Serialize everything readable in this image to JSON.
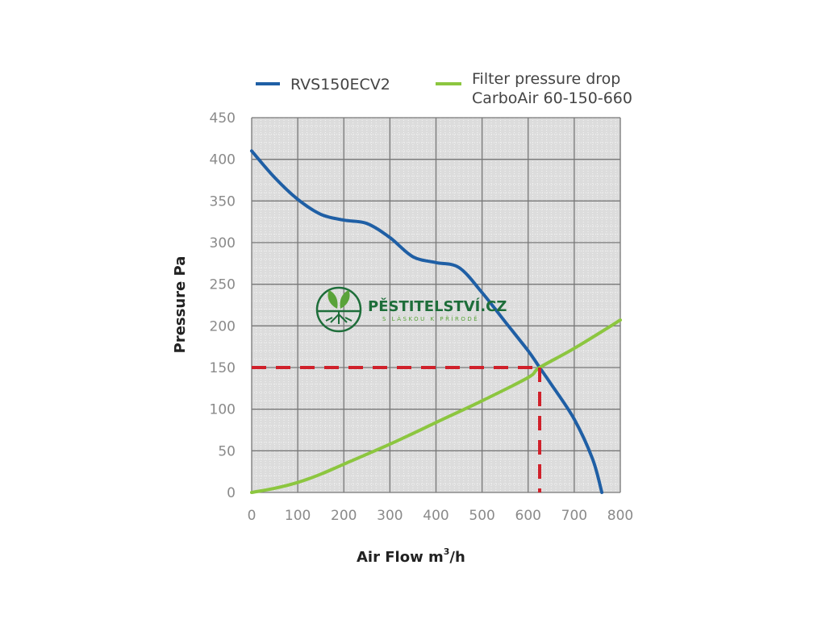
{
  "chart_data": {
    "type": "line",
    "x_label": "Air Flow m",
    "x_label_sup": "3",
    "x_label_tail": "/h",
    "y_label": "Pressure Pa",
    "xlim": [
      0,
      800
    ],
    "ylim": [
      0,
      450
    ],
    "x_ticks": [
      0,
      100,
      200,
      300,
      400,
      500,
      600,
      700,
      800
    ],
    "y_ticks": [
      0,
      50,
      100,
      150,
      200,
      250,
      300,
      350,
      400,
      450
    ],
    "grid": true,
    "legend_position": "top",
    "series": [
      {
        "name": "RVS150ECV2",
        "color": "#1f5fa5",
        "x": [
          0,
          50,
          100,
          150,
          200,
          250,
          300,
          350,
          400,
          450,
          500,
          550,
          600,
          625,
          650,
          700,
          740,
          760
        ],
        "y": [
          410,
          378,
          352,
          334,
          327,
          323,
          306,
          283,
          276,
          270,
          240,
          205,
          170,
          150,
          130,
          88,
          40,
          0
        ]
      },
      {
        "name": "Filter pressure drop",
        "name_line2": "CarboAir 60-150-660",
        "color": "#8cc63f",
        "x": [
          0,
          50,
          100,
          150,
          200,
          300,
          400,
          500,
          600,
          625,
          700,
          800
        ],
        "y": [
          0,
          5,
          12,
          22,
          34,
          58,
          84,
          110,
          138,
          150,
          173,
          207
        ]
      }
    ],
    "annotations": {
      "operating_point": {
        "x": 625,
        "y": 150,
        "color": "#d0202a"
      }
    }
  },
  "watermark": {
    "name": "PĚSTITELSTVÍ.CZ",
    "tagline": "S LÁSKOU K PŘÍRODĚ"
  }
}
